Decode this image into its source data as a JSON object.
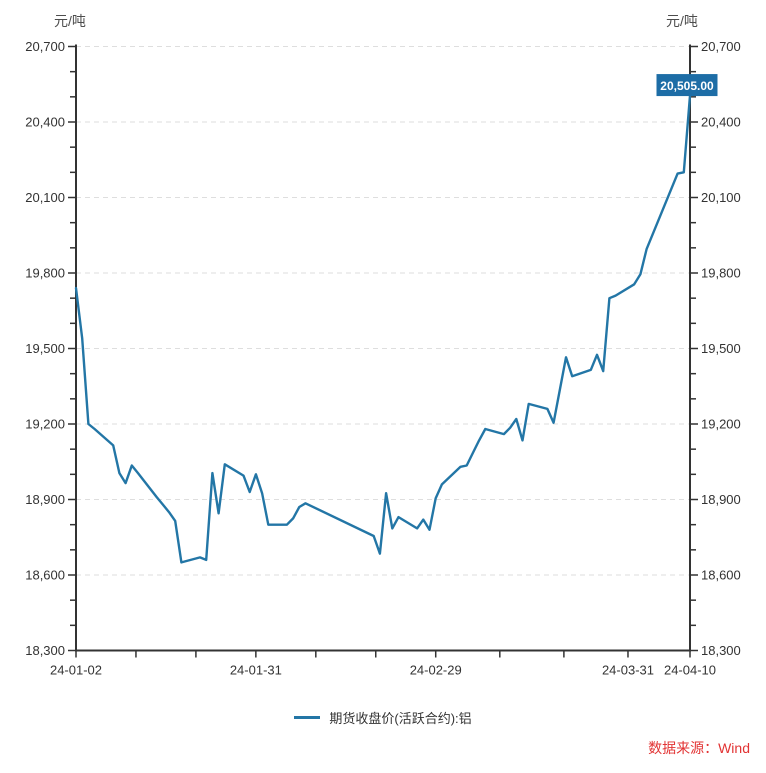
{
  "chart_data": {
    "type": "line",
    "title": "",
    "unit": "元/吨",
    "x_axis": {
      "start_date": "24-01-02",
      "end_date": "24-04-10",
      "tick_labels": [
        "24-01-02",
        "24-01-31",
        "24-02-29",
        "24-03-31",
        "24-04-10"
      ],
      "spacing": "calendar-days",
      "minor_ticks_between_labels": 2,
      "minor_ticks_in_last_interval": 0
    },
    "y_axis": {
      "min": 18300,
      "max": 20700,
      "tick_step": 300,
      "minor_tick_step": 100,
      "grid": "horizontal-dashed",
      "label_sides": "both"
    },
    "legend_position": "bottom-center",
    "series": [
      {
        "name": "期货收盘价(活跃合约):铝",
        "color": "#2376a6",
        "points": [
          [
            "24-01-02",
            19740
          ],
          [
            "24-01-03",
            19540
          ],
          [
            "24-01-04",
            19200
          ],
          [
            "24-01-05",
            19180
          ],
          [
            "24-01-08",
            19115
          ],
          [
            "24-01-09",
            19005
          ],
          [
            "24-01-10",
            18965
          ],
          [
            "24-01-11",
            19035
          ],
          [
            "24-01-12",
            19005
          ],
          [
            "24-01-15",
            18910
          ],
          [
            "24-01-16",
            18880
          ],
          [
            "24-01-17",
            18850
          ],
          [
            "24-01-18",
            18815
          ],
          [
            "24-01-19",
            18650
          ],
          [
            "24-01-22",
            18670
          ],
          [
            "24-01-23",
            18660
          ],
          [
            "24-01-24",
            19005
          ],
          [
            "24-01-25",
            18845
          ],
          [
            "24-01-26",
            19040
          ],
          [
            "24-01-29",
            18995
          ],
          [
            "24-01-30",
            18930
          ],
          [
            "24-01-31",
            19000
          ],
          [
            "24-02-01",
            18925
          ],
          [
            "24-02-02",
            18800
          ],
          [
            "24-02-05",
            18800
          ],
          [
            "24-02-06",
            18825
          ],
          [
            "24-02-07",
            18870
          ],
          [
            "24-02-08",
            18885
          ],
          [
            "24-02-19",
            18755
          ],
          [
            "24-02-20",
            18685
          ],
          [
            "24-02-21",
            18925
          ],
          [
            "24-02-22",
            18785
          ],
          [
            "24-02-23",
            18830
          ],
          [
            "24-02-26",
            18785
          ],
          [
            "24-02-27",
            18820
          ],
          [
            "24-02-28",
            18780
          ],
          [
            "24-02-29",
            18905
          ],
          [
            "24-03-01",
            18960
          ],
          [
            "24-03-04",
            19030
          ],
          [
            "24-03-05",
            19035
          ],
          [
            "24-03-06",
            19085
          ],
          [
            "24-03-07",
            19135
          ],
          [
            "24-03-08",
            19180
          ],
          [
            "24-03-11",
            19160
          ],
          [
            "24-03-12",
            19185
          ],
          [
            "24-03-13",
            19220
          ],
          [
            "24-03-14",
            19135
          ],
          [
            "24-03-15",
            19280
          ],
          [
            "24-03-18",
            19260
          ],
          [
            "24-03-19",
            19205
          ],
          [
            "24-03-20",
            19335
          ],
          [
            "24-03-21",
            19465
          ],
          [
            "24-03-22",
            19390
          ],
          [
            "24-03-25",
            19415
          ],
          [
            "24-03-26",
            19475
          ],
          [
            "24-03-27",
            19410
          ],
          [
            "24-03-28",
            19700
          ],
          [
            "24-03-29",
            19710
          ],
          [
            "24-04-01",
            19755
          ],
          [
            "24-04-02",
            19795
          ],
          [
            "24-04-03",
            19895
          ],
          [
            "24-04-08",
            20195
          ],
          [
            "24-04-09",
            20200
          ],
          [
            "24-04-10",
            20505
          ]
        ]
      }
    ],
    "last_point_label": {
      "text": "20,505.00",
      "bg": "#1d6da6",
      "fg": "#ffffff"
    }
  },
  "style": {
    "background": "#ffffff",
    "axis_color": "#333333",
    "grid_color": "#dedede",
    "tick_label_color": "#333333",
    "unit_label_color": "#4d4d4d"
  },
  "legend": {
    "label": "期货收盘价(活跃合约):铝"
  },
  "footer": {
    "source_label": "数据来源：Wind",
    "color": "#e23333"
  }
}
